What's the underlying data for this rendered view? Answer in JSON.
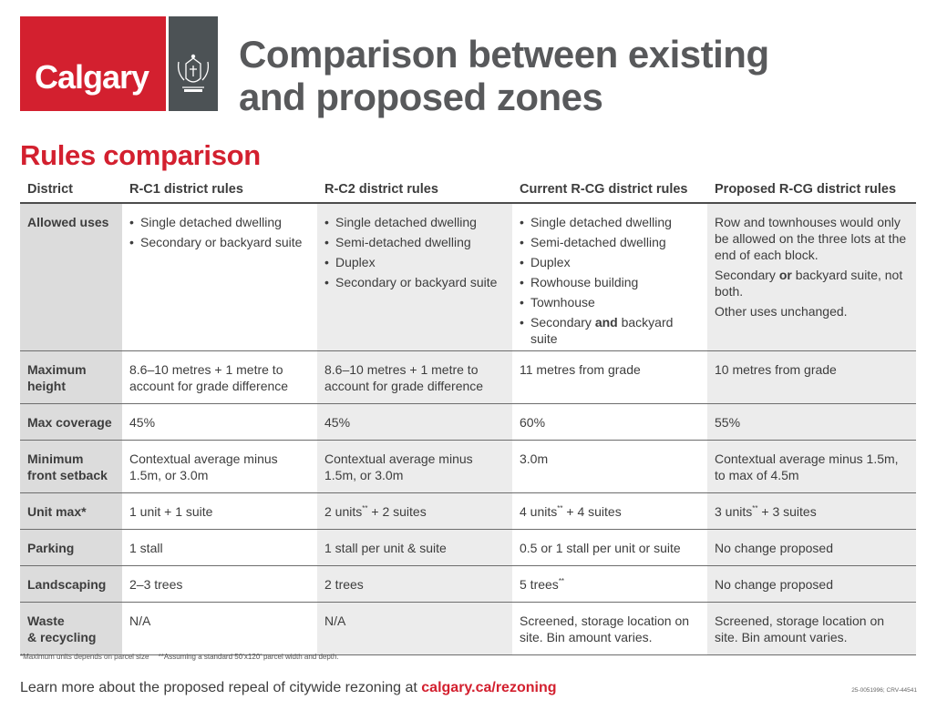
{
  "brand": {
    "logo_text": "Calgary",
    "red": "#d3202f",
    "gray": "#4c5255",
    "crest_icon": "city-crest-icon"
  },
  "title": {
    "line1": "Comparison between existing",
    "line2": "and proposed zones"
  },
  "section_title": "Rules comparison",
  "table": {
    "headers": [
      "District",
      "R-C1 district rules",
      "R-C2 district rules",
      "Current R-CG district rules",
      "Proposed R-CG district rules"
    ],
    "allowed_uses": {
      "label": "Allowed uses",
      "rc1": [
        "Single detached dwelling",
        "Secondary or backyard suite"
      ],
      "rc2": [
        "Single detached dwelling",
        "Semi-detached dwelling",
        "Duplex",
        "Secondary or backyard suite"
      ],
      "rcg_current": [
        "Single detached dwelling",
        "Semi-detached dwelling",
        "Duplex",
        "Rowhouse building",
        "Townhouse"
      ],
      "rcg_current_last": {
        "pre": "Secondary ",
        "bold": "and",
        "post": " backyard suite"
      },
      "rcg_proposed": {
        "p1": "Row and townhouses would only be allowed on the three lots at the end of each block.",
        "p2_pre": "Secondary ",
        "p2_bold": "or",
        "p2_post": " backyard suite, not both.",
        "p3": "Other uses unchanged."
      }
    },
    "max_height": {
      "label_1": "Maximum",
      "label_2": "height",
      "rc1": "8.6–10 metres + 1 metre to account for grade difference",
      "rc2": "8.6–10 metres + 1 metre to account for grade difference",
      "rcg_current": "11 metres from grade",
      "rcg_proposed": "10 metres from grade"
    },
    "max_coverage": {
      "label": "Max coverage",
      "rc1": "45%",
      "rc2": "45%",
      "rcg_current": "60%",
      "rcg_proposed": "55%"
    },
    "front_setback": {
      "label_1": "Minimum",
      "label_2": "front setback",
      "rc1": "Contextual average minus 1.5m, or 3.0m",
      "rc2": "Contextual average minus 1.5m, or 3.0m",
      "rcg_current": "3.0m",
      "rcg_proposed": "Contextual average minus 1.5m, to max of 4.5m"
    },
    "unit_max": {
      "label": "Unit max*",
      "rc1": "1 unit + 1 suite",
      "rc2_a": "2 units",
      "rc2_b": " + 2 suites",
      "rcg_current_a": "4 units",
      "rcg_current_b": " + 4 suites",
      "rcg_proposed_a": "3 units",
      "rcg_proposed_b": " + 3 suites",
      "mark": "**"
    },
    "parking": {
      "label": "Parking",
      "rc1": "1 stall",
      "rc2": "1 stall per unit & suite",
      "rcg_current": "0.5 or 1 stall per unit or suite",
      "rcg_proposed": "No change proposed"
    },
    "landscaping": {
      "label": "Landscaping",
      "rc1": "2–3 trees",
      "rc2": "2 trees",
      "rcg_current": "5 trees",
      "rcg_current_mark": "**",
      "rcg_proposed": "No change proposed"
    },
    "waste": {
      "label_1": "Waste",
      "label_2": "& recycling",
      "rc1": "N/A",
      "rc2": "N/A",
      "rcg_current": "Screened, storage location on site. Bin amount varies.",
      "rcg_proposed": "Screened, storage location on site. Bin amount varies."
    }
  },
  "footnotes": {
    "note1": "*Maximum units depends on parcel size",
    "note2": "**Assuming a standard 50’x120’ parcel width and depth."
  },
  "learn_more": {
    "text": "Learn more about the proposed repeal of citywide rezoning at ",
    "link": "calgary.ca/rezoning"
  },
  "doc_code": "25-0051996; CRV-44541"
}
